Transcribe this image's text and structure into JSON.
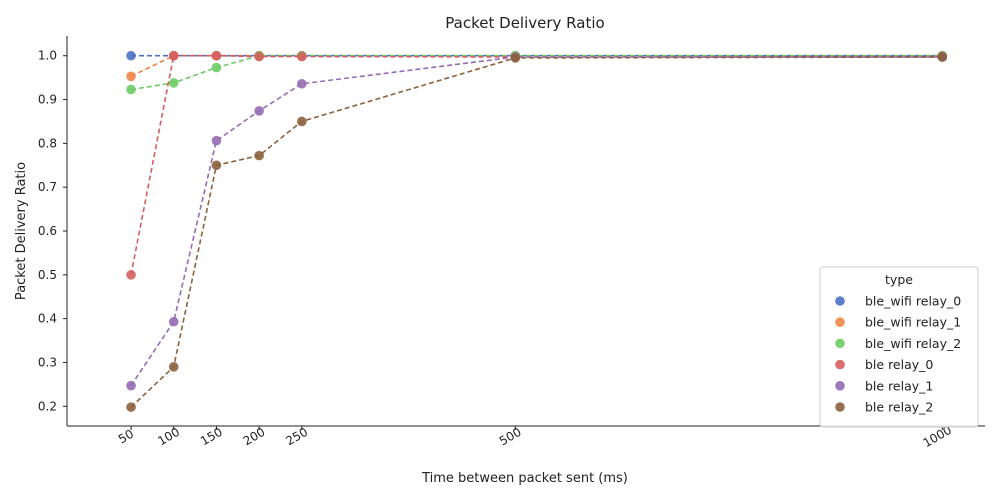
{
  "chart_data": {
    "type": "line",
    "title": "Packet Delivery Ratio",
    "xlabel": "Time between packet sent (ms)",
    "ylabel": "Packet Delivery Ratio",
    "x_ticks": [
      50,
      100,
      150,
      200,
      250,
      500,
      1000
    ],
    "x_tick_labels": [
      "50",
      "100",
      "150",
      "200",
      "250",
      "500",
      "1000"
    ],
    "y_ticks": [
      0.2,
      0.3,
      0.4,
      0.5,
      0.6,
      0.7,
      0.8,
      0.9,
      1.0
    ],
    "y_tick_labels": [
      "0.2",
      "0.3",
      "0.4",
      "0.5",
      "0.6",
      "0.7",
      "0.8",
      "0.9",
      "1.0"
    ],
    "xlim": [
      -25,
      1050
    ],
    "ylim": [
      0.155,
      1.045
    ],
    "grid": false,
    "legend": {
      "title": "type",
      "placement": "lower right"
    },
    "series": [
      {
        "name": "ble_wifi relay_0",
        "color": "#4c72c4",
        "x": [
          50,
          100,
          150,
          200,
          250,
          500,
          1000
        ],
        "y": [
          1.0,
          1.0,
          1.0,
          1.0,
          1.0,
          1.0,
          1.0
        ]
      },
      {
        "name": "ble_wifi relay_1",
        "color": "#ee854a",
        "x": [
          50,
          100,
          150,
          200,
          250,
          500,
          1000
        ],
        "y": [
          0.953,
          1.0,
          1.0,
          1.0,
          1.0,
          1.0,
          1.0
        ]
      },
      {
        "name": "ble_wifi relay_2",
        "color": "#6acc64",
        "x": [
          50,
          100,
          150,
          200,
          250,
          500,
          1000
        ],
        "y": [
          0.923,
          0.938,
          0.973,
          1.0,
          1.0,
          1.0,
          1.0
        ]
      },
      {
        "name": "ble relay_0",
        "color": "#d65f5f",
        "x": [
          50,
          100,
          150,
          200,
          250,
          500,
          1000
        ],
        "y": [
          0.5,
          1.0,
          1.0,
          0.998,
          0.998,
          0.997,
          0.998
        ]
      },
      {
        "name": "ble relay_1",
        "color": "#956cb4",
        "x": [
          50,
          100,
          150,
          200,
          250,
          500,
          1000
        ],
        "y": [
          0.247,
          0.393,
          0.806,
          0.874,
          0.936,
          0.997,
          0.997
        ]
      },
      {
        "name": "ble relay_2",
        "color": "#8c613c",
        "x": [
          50,
          100,
          150,
          200,
          250,
          500,
          1000
        ],
        "y": [
          0.198,
          0.29,
          0.75,
          0.772,
          0.85,
          0.995,
          0.997
        ]
      }
    ]
  }
}
